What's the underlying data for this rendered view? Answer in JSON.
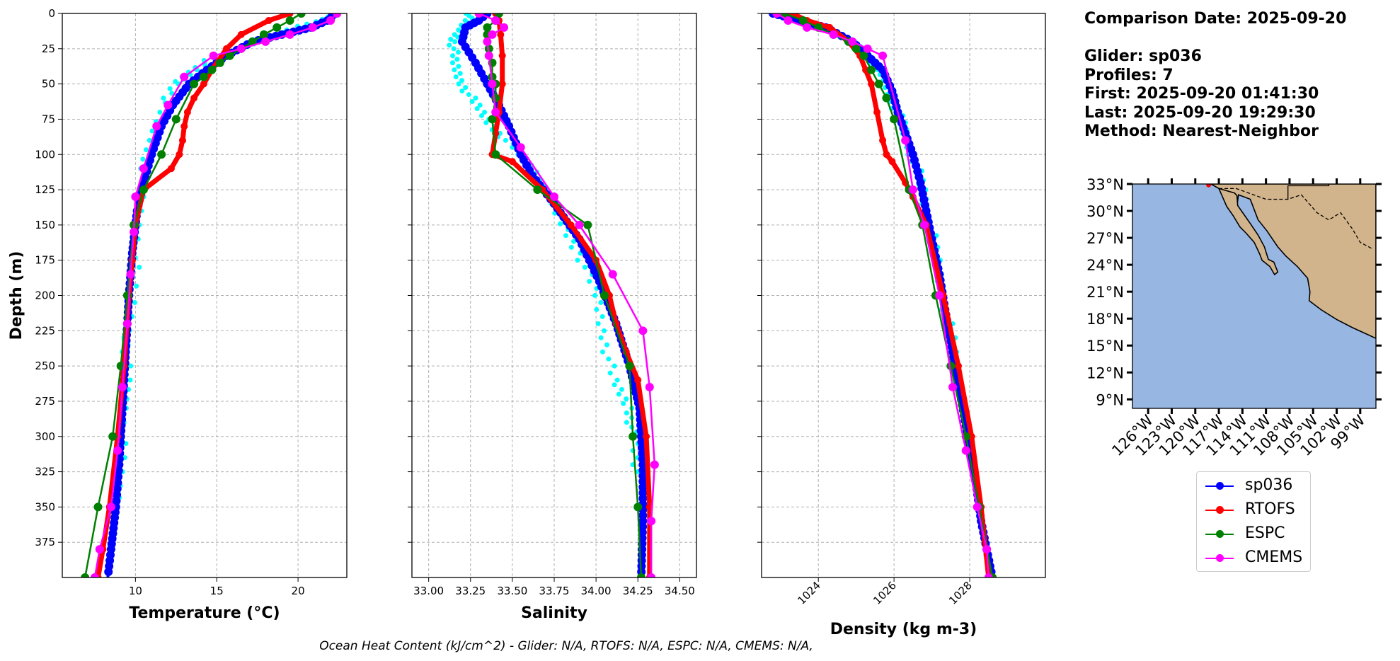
{
  "info": {
    "date_line": "Comparison Date: 2025-09-20",
    "glider_line": "Glider: sp036",
    "profiles_line": "Profiles: 7",
    "first_line": "First: 2025-09-20 01:41:30",
    "last_line": "Last: 2025-09-20 19:29:30",
    "method_line": "Method: Nearest-Neighbor"
  },
  "footer": "Ocean Heat Content (kJ/cm^2) - Glider: N/A,  RTOFS: N/A,  ESPC: N/A,  CMEMS: N/A,",
  "colors": {
    "glider": "#0000ff",
    "rtofs": "#ff0000",
    "espc": "#008000",
    "cmems": "#ff00ff",
    "profiles": "#00ffff",
    "ocean": "#97b6e1",
    "land": "#d2b48c"
  },
  "legend": [
    {
      "label": "sp036",
      "color": "#0000ff"
    },
    {
      "label": "RTOFS",
      "color": "#ff0000"
    },
    {
      "label": "ESPC",
      "color": "#008000"
    },
    {
      "label": "CMEMS",
      "color": "#ff00ff"
    }
  ],
  "chart_data": [
    {
      "type": "line",
      "xlabel": "Temperature (°C)",
      "ylabel": "Depth (m)",
      "xlim": [
        5.5,
        23
      ],
      "ylim": [
        400,
        0
      ],
      "xticks": [
        10,
        15,
        20
      ],
      "yticks": [
        0,
        25,
        50,
        75,
        100,
        125,
        150,
        175,
        200,
        225,
        250,
        275,
        300,
        325,
        350,
        375
      ],
      "grid": true,
      "series": [
        {
          "name": "sp036",
          "x": [
            22.3,
            21.8,
            20.8,
            19.0,
            17.2,
            15.6,
            14.4,
            13.3,
            12.3,
            11.6,
            11.0,
            10.5,
            10.1,
            9.8,
            9.6,
            9.4,
            9.2,
            9.0,
            8.8,
            8.5,
            8.3
          ],
          "y": [
            0,
            5,
            10,
            15,
            20,
            30,
            40,
            50,
            65,
            80,
            100,
            120,
            140,
            170,
            200,
            240,
            280,
            320,
            350,
            380,
            400
          ]
        },
        {
          "name": "RTOFS",
          "x": [
            19.5,
            18.2,
            16.5,
            15.6,
            14.7,
            14.2,
            13.6,
            13.2,
            13.0,
            12.9,
            12.7,
            12.2,
            10.5,
            10.0,
            9.8,
            9.6,
            9.3,
            8.9,
            8.4,
            8.0,
            7.7
          ],
          "y": [
            0,
            5,
            15,
            25,
            40,
            50,
            60,
            70,
            80,
            90,
            100,
            110,
            125,
            150,
            175,
            200,
            250,
            300,
            350,
            380,
            400
          ]
        },
        {
          "name": "ESPC",
          "x": [
            20.2,
            19.5,
            18.7,
            17.9,
            17.2,
            16.5,
            15.8,
            15.2,
            14.7,
            14.2,
            13.6,
            12.5,
            11.6,
            10.5,
            9.9,
            9.5,
            9.1,
            8.6,
            7.7,
            6.9
          ],
          "y": [
            0,
            5,
            10,
            15,
            20,
            25,
            30,
            35,
            40,
            45,
            50,
            75,
            100,
            125,
            150,
            200,
            250,
            300,
            350,
            400
          ]
        },
        {
          "name": "CMEMS",
          "x": [
            22.4,
            22.0,
            20.9,
            19.5,
            18.0,
            16.5,
            14.8,
            13.0,
            12.0,
            11.3,
            10.5,
            10.0,
            9.9,
            9.7,
            9.5,
            9.2,
            8.9,
            8.5,
            7.8,
            7.5
          ],
          "y": [
            0,
            5,
            10,
            15,
            20,
            25,
            30,
            45,
            65,
            80,
            110,
            130,
            155,
            185,
            220,
            265,
            310,
            350,
            380,
            400
          ]
        },
        {
          "name": "glider profiles",
          "x": [
            22.3,
            21.5,
            20.0,
            17.5,
            15.0,
            13.5,
            12.5,
            11.5,
            11.0,
            10.6,
            10.3,
            10.1,
            9.8,
            9.5,
            9.4,
            9.3,
            9.1,
            8.9,
            8.7
          ],
          "y": [
            0,
            5,
            10,
            20,
            30,
            40,
            50,
            70,
            90,
            110,
            130,
            160,
            200,
            230,
            260,
            280,
            310,
            340,
            360
          ]
        }
      ]
    },
    {
      "type": "line",
      "xlabel": "Salinity",
      "xlim": [
        32.9,
        34.6
      ],
      "ylim": [
        400,
        0
      ],
      "xticks": [
        33.0,
        33.25,
        33.5,
        33.75,
        34.0,
        34.25,
        34.5
      ],
      "xticklabels": [
        "33.00",
        "33.25",
        "33.50",
        "33.75",
        "34.00",
        "34.25",
        "34.50"
      ],
      "grid": true,
      "series": [
        {
          "name": "sp036",
          "x": [
            33.35,
            33.3,
            33.22,
            33.2,
            33.28,
            33.35,
            33.42,
            33.48,
            33.55,
            33.62,
            33.75,
            33.9,
            34.02,
            34.12,
            34.2,
            34.26,
            34.28,
            34.28,
            34.27
          ],
          "y": [
            0,
            5,
            10,
            20,
            35,
            50,
            65,
            80,
            100,
            115,
            135,
            160,
            190,
            220,
            250,
            280,
            320,
            360,
            400
          ]
        },
        {
          "name": "RTOFS",
          "x": [
            33.4,
            33.42,
            33.43,
            33.44,
            33.44,
            33.42,
            33.4,
            33.38,
            33.5,
            33.68,
            33.85,
            34.0,
            34.08,
            34.12,
            34.18,
            34.25,
            34.3,
            34.32,
            34.32
          ],
          "y": [
            0,
            5,
            15,
            30,
            50,
            70,
            85,
            100,
            105,
            125,
            150,
            175,
            200,
            220,
            240,
            260,
            300,
            350,
            400
          ]
        },
        {
          "name": "ESPC",
          "x": [
            33.42,
            33.4,
            33.35,
            33.35,
            33.36,
            33.38,
            33.38,
            33.4,
            33.4,
            33.38,
            33.4,
            33.65,
            33.95,
            34.05,
            34.2,
            34.22,
            34.25,
            34.27
          ],
          "y": [
            0,
            5,
            10,
            15,
            25,
            35,
            45,
            50,
            60,
            75,
            100,
            125,
            150,
            200,
            250,
            300,
            350,
            400
          ]
        },
        {
          "name": "CMEMS",
          "x": [
            33.3,
            33.4,
            33.45,
            33.38,
            33.35,
            33.36,
            33.38,
            33.4,
            33.55,
            33.75,
            33.9,
            34.1,
            34.28,
            34.32,
            34.35,
            34.33,
            34.33
          ],
          "y": [
            0,
            5,
            10,
            15,
            20,
            30,
            50,
            70,
            95,
            130,
            150,
            185,
            225,
            265,
            320,
            360,
            400
          ]
        },
        {
          "name": "glider profiles",
          "x": [
            33.25,
            33.2,
            33.15,
            33.15,
            33.2,
            33.28,
            33.38,
            33.5,
            33.62,
            33.7,
            33.78,
            33.9,
            34.0,
            34.05,
            34.1,
            34.2,
            34.22,
            34.24
          ],
          "y": [
            0,
            10,
            20,
            35,
            50,
            65,
            80,
            95,
            110,
            125,
            145,
            170,
            200,
            230,
            260,
            280,
            300,
            330
          ]
        }
      ]
    },
    {
      "type": "line",
      "xlabel": "Density (kg m-3)",
      "xlim": [
        1022.5,
        1030
      ],
      "ylim": [
        400,
        0
      ],
      "xticks": [
        1024,
        1026,
        1028
      ],
      "grid": true,
      "series": [
        {
          "name": "sp036",
          "x": [
            1022.8,
            1023.5,
            1024.2,
            1024.9,
            1025.3,
            1025.7,
            1025.95,
            1026.1,
            1026.3,
            1026.5,
            1026.7,
            1026.85,
            1027.0,
            1027.2,
            1027.35,
            1027.55,
            1027.75,
            1027.95,
            1028.15,
            1028.3,
            1028.45,
            1028.6
          ],
          "y": [
            0,
            5,
            10,
            20,
            30,
            40,
            55,
            70,
            85,
            100,
            120,
            140,
            160,
            185,
            210,
            240,
            270,
            300,
            330,
            360,
            380,
            400
          ]
        },
        {
          "name": "RTOFS",
          "x": [
            1023.3,
            1023.7,
            1024.3,
            1024.8,
            1025.1,
            1025.25,
            1025.4,
            1025.55,
            1025.7,
            1025.8,
            1025.95,
            1026.3,
            1026.5,
            1026.85,
            1027.3,
            1027.7,
            1028.05,
            1028.3,
            1028.5
          ],
          "y": [
            0,
            5,
            10,
            20,
            30,
            40,
            50,
            70,
            90,
            100,
            105,
            120,
            130,
            150,
            200,
            250,
            300,
            350,
            400
          ]
        },
        {
          "name": "ESPC",
          "x": [
            1023.1,
            1023.6,
            1024.0,
            1024.4,
            1024.8,
            1025.0,
            1025.2,
            1025.4,
            1025.6,
            1025.8,
            1026.0,
            1026.4,
            1026.75,
            1027.1,
            1027.5,
            1027.9,
            1028.25,
            1028.6
          ],
          "y": [
            0,
            5,
            10,
            15,
            20,
            25,
            30,
            40,
            50,
            60,
            75,
            125,
            150,
            200,
            250,
            300,
            350,
            400
          ]
        },
        {
          "name": "CMEMS",
          "x": [
            1022.9,
            1023.2,
            1023.7,
            1024.4,
            1024.9,
            1025.3,
            1025.7,
            1026.3,
            1026.5,
            1026.8,
            1027.2,
            1027.55,
            1027.9,
            1028.2,
            1028.45,
            1028.5
          ],
          "y": [
            0,
            5,
            10,
            15,
            20,
            25,
            30,
            90,
            125,
            150,
            200,
            265,
            310,
            350,
            380,
            400
          ]
        },
        {
          "name": "glider profiles",
          "x": [
            1023.0,
            1023.8,
            1024.6,
            1025.1,
            1025.45,
            1025.7,
            1025.95,
            1026.15,
            1026.35,
            1026.55,
            1026.75,
            1026.9,
            1027.1,
            1027.3,
            1027.5,
            1027.7
          ],
          "y": [
            0,
            8,
            15,
            25,
            35,
            45,
            60,
            75,
            90,
            105,
            125,
            145,
            170,
            200,
            230,
            260
          ]
        }
      ]
    },
    {
      "type": "map",
      "lon_range": [
        -128,
        -97
      ],
      "lat_range": [
        8,
        33
      ],
      "lon_ticks": [
        "126°W",
        "123°W",
        "120°W",
        "117°W",
        "114°W",
        "111°W",
        "108°W",
        "105°W",
        "102°W",
        "99°W"
      ],
      "lat_ticks": [
        "33°N",
        "30°N",
        "27°N",
        "24°N",
        "21°N",
        "18°N",
        "15°N",
        "12°N",
        "9°N"
      ]
    }
  ]
}
